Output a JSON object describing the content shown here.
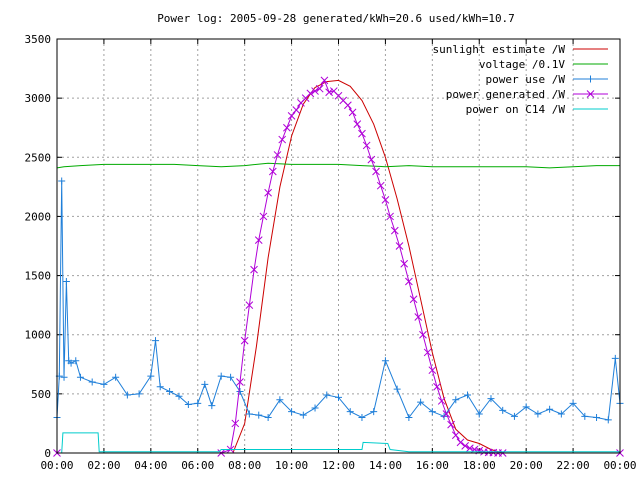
{
  "chart_data": {
    "type": "line",
    "title": "Power log: 2005-09-28 generated/kWh=20.6 used/kWh=10.7",
    "xlabel": "",
    "ylabel": "",
    "xlim": [
      0,
      24
    ],
    "ylim": [
      0,
      3500
    ],
    "x_ticks": [
      "00:00",
      "02:00",
      "04:00",
      "06:00",
      "08:00",
      "10:00",
      "12:00",
      "14:00",
      "16:00",
      "18:00",
      "20:00",
      "22:00",
      "00:00"
    ],
    "y_ticks": [
      0,
      500,
      1000,
      1500,
      2000,
      2500,
      3000,
      3500
    ],
    "grid": true,
    "legend_position": "top-right",
    "series": [
      {
        "name": "sunlight estimate /W",
        "color": "#cc0000",
        "marker": "none",
        "x": [
          0,
          7.5,
          8.0,
          8.5,
          9.0,
          9.5,
          10.0,
          10.5,
          11.0,
          11.5,
          12.0,
          12.5,
          13.0,
          13.5,
          14.0,
          14.5,
          15.0,
          15.5,
          16.0,
          16.5,
          17.0,
          17.5,
          18.0,
          18.5,
          19.0,
          24
        ],
        "y": [
          0,
          0,
          250,
          900,
          1650,
          2250,
          2680,
          2950,
          3090,
          3140,
          3150,
          3100,
          2980,
          2780,
          2500,
          2150,
          1750,
          1300,
          850,
          460,
          200,
          110,
          80,
          30,
          0,
          0
        ]
      },
      {
        "name": "voltage /0.1V",
        "color": "#00aa00",
        "marker": "none",
        "x": [
          0,
          0.3,
          1,
          2,
          3,
          4,
          5,
          6,
          7,
          8,
          9,
          10,
          11,
          12,
          13,
          14,
          15,
          16,
          17,
          18,
          19,
          20,
          21,
          22,
          23,
          24
        ],
        "y": [
          2410,
          2420,
          2430,
          2440,
          2440,
          2440,
          2440,
          2430,
          2420,
          2430,
          2450,
          2440,
          2440,
          2440,
          2430,
          2420,
          2430,
          2420,
          2420,
          2420,
          2420,
          2420,
          2410,
          2420,
          2430,
          2430
        ]
      },
      {
        "name": "power use /W",
        "color": "#1f7fd9",
        "marker": "plus",
        "x": [
          0,
          0.1,
          0.2,
          0.3,
          0.4,
          0.5,
          0.6,
          0.8,
          1.0,
          1.5,
          2.0,
          2.5,
          3.0,
          3.5,
          4.0,
          4.2,
          4.4,
          4.8,
          5.2,
          5.6,
          6.0,
          6.3,
          6.6,
          7.0,
          7.4,
          7.8,
          8.2,
          8.6,
          9.0,
          9.5,
          10.0,
          10.5,
          11.0,
          11.5,
          12.0,
          12.5,
          13.0,
          13.5,
          14.0,
          14.5,
          15.0,
          15.5,
          16.0,
          16.5,
          17.0,
          17.5,
          18.0,
          18.5,
          19.0,
          19.5,
          20.0,
          20.5,
          21.0,
          21.5,
          22.0,
          22.5,
          23.0,
          23.5,
          23.8,
          24.0
        ],
        "y": [
          300,
          650,
          2300,
          640,
          1450,
          780,
          760,
          780,
          640,
          600,
          580,
          640,
          490,
          500,
          650,
          950,
          560,
          520,
          480,
          410,
          420,
          580,
          400,
          650,
          640,
          520,
          330,
          320,
          300,
          450,
          350,
          320,
          380,
          490,
          470,
          350,
          300,
          350,
          780,
          540,
          300,
          430,
          350,
          310,
          450,
          490,
          330,
          460,
          360,
          310,
          390,
          330,
          370,
          330,
          420,
          310,
          300,
          280,
          800,
          420
        ]
      },
      {
        "name": "power generated /W",
        "color": "#b000d8",
        "marker": "cross",
        "x": [
          0,
          7.0,
          7.4,
          7.6,
          7.8,
          8.0,
          8.2,
          8.4,
          8.6,
          8.8,
          9.0,
          9.2,
          9.4,
          9.6,
          9.8,
          10.0,
          10.2,
          10.4,
          10.6,
          10.8,
          11.0,
          11.2,
          11.4,
          11.6,
          11.8,
          12.0,
          12.2,
          12.4,
          12.6,
          12.8,
          13.0,
          13.2,
          13.4,
          13.6,
          13.8,
          14.0,
          14.2,
          14.4,
          14.6,
          14.8,
          15.0,
          15.2,
          15.4,
          15.6,
          15.8,
          16.0,
          16.2,
          16.4,
          16.6,
          16.8,
          17.0,
          17.2,
          17.4,
          17.6,
          17.8,
          18.0,
          18.2,
          18.4,
          18.6,
          18.8,
          19.0,
          24.0
        ],
        "y": [
          0,
          0,
          30,
          250,
          600,
          950,
          1250,
          1550,
          1800,
          2000,
          2200,
          2380,
          2520,
          2650,
          2750,
          2850,
          2900,
          2960,
          3000,
          3040,
          3060,
          3080,
          3150,
          3050,
          3060,
          3020,
          2980,
          2940,
          2880,
          2780,
          2700,
          2600,
          2480,
          2380,
          2260,
          2140,
          2000,
          1880,
          1750,
          1600,
          1450,
          1300,
          1150,
          1000,
          850,
          700,
          560,
          440,
          330,
          240,
          150,
          90,
          60,
          40,
          30,
          20,
          10,
          5,
          3,
          0,
          0,
          0
        ]
      },
      {
        "name": "power on C14 /W",
        "color": "#00cccc",
        "marker": "none",
        "x": [
          0,
          0.2,
          0.25,
          1.75,
          1.8,
          6.9,
          7.0,
          13.0,
          13.05,
          14.1,
          14.2,
          15.0,
          24.0
        ],
        "y": [
          0,
          0,
          170,
          170,
          10,
          10,
          30,
          30,
          90,
          80,
          30,
          10,
          10
        ]
      }
    ]
  }
}
